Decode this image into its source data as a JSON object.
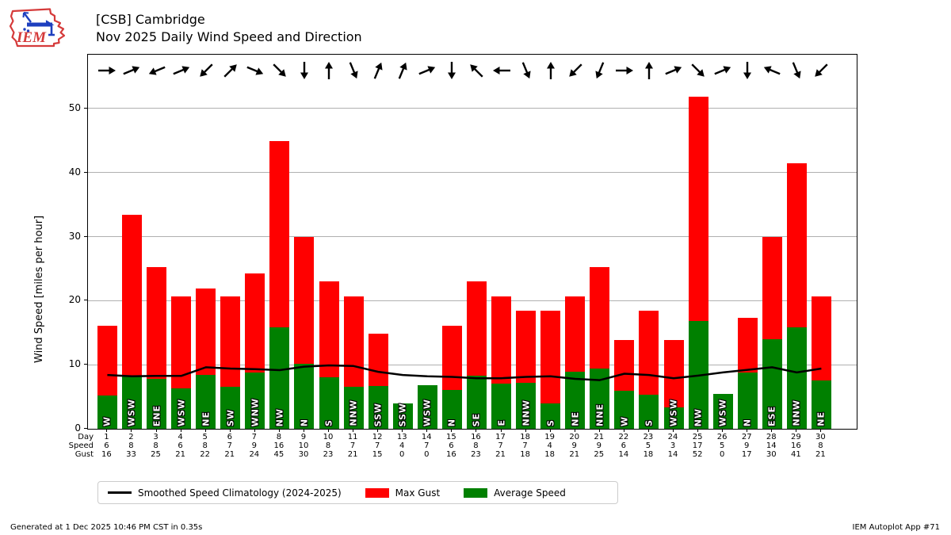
{
  "logo": {
    "text": "IEM"
  },
  "header": {
    "title_line1": "[CSB] Cambridge",
    "title_line2": "Nov 2025 Daily Wind Speed and Direction"
  },
  "chart_data": {
    "type": "bar",
    "title": "Nov 2025 Daily Wind Speed and Direction",
    "station": "[CSB] Cambridge",
    "xlabel": "",
    "ylabel": "Wind Speed [miles per hour]",
    "ylim": [
      0,
      58.4
    ],
    "yticks": [
      0,
      10,
      20,
      30,
      40,
      50
    ],
    "grid": "horizontal",
    "legend_position": "bottom",
    "colors": {
      "max_gust": "#ff0000",
      "average_speed": "#008000",
      "climatology_line": "#000000",
      "gridline": "#b0b0b0"
    },
    "row_labels": [
      "Day",
      "Speed",
      "Gust"
    ],
    "days": [
      {
        "day": 1,
        "dir": "W",
        "speed": 6,
        "gust": 16,
        "avg_mph": 5.2,
        "gust_mph": 16.1
      },
      {
        "day": 2,
        "dir": "WSW",
        "speed": 8,
        "gust": 33,
        "avg_mph": 8.2,
        "gust_mph": 33.4
      },
      {
        "day": 3,
        "dir": "ENE",
        "speed": 8,
        "gust": 25,
        "avg_mph": 7.8,
        "gust_mph": 25.3
      },
      {
        "day": 4,
        "dir": "WSW",
        "speed": 6,
        "gust": 21,
        "avg_mph": 6.3,
        "gust_mph": 20.7
      },
      {
        "day": 5,
        "dir": "NE",
        "speed": 8,
        "gust": 22,
        "avg_mph": 8.4,
        "gust_mph": 21.9
      },
      {
        "day": 6,
        "dir": "SW",
        "speed": 7,
        "gust": 21,
        "avg_mph": 6.6,
        "gust_mph": 20.7
      },
      {
        "day": 7,
        "dir": "WNW",
        "speed": 9,
        "gust": 24,
        "avg_mph": 8.8,
        "gust_mph": 24.2
      },
      {
        "day": 8,
        "dir": "NW",
        "speed": 16,
        "gust": 45,
        "avg_mph": 15.8,
        "gust_mph": 44.9
      },
      {
        "day": 9,
        "dir": "N",
        "speed": 10,
        "gust": 30,
        "avg_mph": 10.2,
        "gust_mph": 29.9
      },
      {
        "day": 10,
        "dir": "S",
        "speed": 8,
        "gust": 23,
        "avg_mph": 8.0,
        "gust_mph": 23.0
      },
      {
        "day": 11,
        "dir": "NNW",
        "speed": 7,
        "gust": 21,
        "avg_mph": 6.6,
        "gust_mph": 20.7
      },
      {
        "day": 12,
        "dir": "SSW",
        "speed": 7,
        "gust": 15,
        "avg_mph": 6.7,
        "gust_mph": 14.9
      },
      {
        "day": 13,
        "dir": "SSW",
        "speed": 4,
        "gust": 0,
        "avg_mph": 3.9,
        "gust_mph": 0
      },
      {
        "day": 14,
        "dir": "WSW",
        "speed": 7,
        "gust": 0,
        "avg_mph": 6.8,
        "gust_mph": 0
      },
      {
        "day": 15,
        "dir": "N",
        "speed": 6,
        "gust": 16,
        "avg_mph": 6.1,
        "gust_mph": 16.1
      },
      {
        "day": 16,
        "dir": "SE",
        "speed": 8,
        "gust": 23,
        "avg_mph": 8.3,
        "gust_mph": 23.0
      },
      {
        "day": 17,
        "dir": "E",
        "speed": 7,
        "gust": 21,
        "avg_mph": 7.0,
        "gust_mph": 20.7
      },
      {
        "day": 18,
        "dir": "NNW",
        "speed": 7,
        "gust": 18,
        "avg_mph": 7.2,
        "gust_mph": 18.4
      },
      {
        "day": 19,
        "dir": "S",
        "speed": 4,
        "gust": 18,
        "avg_mph": 3.9,
        "gust_mph": 18.4
      },
      {
        "day": 20,
        "dir": "NE",
        "speed": 9,
        "gust": 21,
        "avg_mph": 8.9,
        "gust_mph": 20.7
      },
      {
        "day": 21,
        "dir": "NNE",
        "speed": 9,
        "gust": 25,
        "avg_mph": 9.4,
        "gust_mph": 25.3
      },
      {
        "day": 22,
        "dir": "W",
        "speed": 6,
        "gust": 14,
        "avg_mph": 5.9,
        "gust_mph": 13.8
      },
      {
        "day": 23,
        "dir": "S",
        "speed": 5,
        "gust": 18,
        "avg_mph": 5.3,
        "gust_mph": 18.4
      },
      {
        "day": 24,
        "dir": "WSW",
        "speed": 3,
        "gust": 14,
        "avg_mph": 3.4,
        "gust_mph": 13.8
      },
      {
        "day": 25,
        "dir": "NW",
        "speed": 17,
        "gust": 52,
        "avg_mph": 16.8,
        "gust_mph": 51.8
      },
      {
        "day": 26,
        "dir": "WSW",
        "speed": 5,
        "gust": 0,
        "avg_mph": 5.5,
        "gust_mph": 0
      },
      {
        "day": 27,
        "dir": "N",
        "speed": 9,
        "gust": 17,
        "avg_mph": 8.8,
        "gust_mph": 17.3
      },
      {
        "day": 28,
        "dir": "ESE",
        "speed": 14,
        "gust": 30,
        "avg_mph": 14.0,
        "gust_mph": 30.0
      },
      {
        "day": 29,
        "dir": "NNW",
        "speed": 16,
        "gust": 41,
        "avg_mph": 15.8,
        "gust_mph": 41.4
      },
      {
        "day": 30,
        "dir": "NE",
        "speed": 8,
        "gust": 21,
        "avg_mph": 7.6,
        "gust_mph": 20.7
      }
    ],
    "series": [
      {
        "name": "Max Gust",
        "type": "bar",
        "color": "#ff0000"
      },
      {
        "name": "Average Speed",
        "type": "bar",
        "color": "#008000"
      },
      {
        "name": "Smoothed Speed Climatology (2024-2025)",
        "type": "line",
        "color": "#000000",
        "values": [
          8.4,
          8.2,
          8.25,
          8.25,
          9.6,
          9.4,
          9.3,
          9.15,
          9.7,
          9.9,
          9.8,
          8.9,
          8.4,
          8.2,
          8.1,
          7.9,
          7.9,
          8.1,
          8.2,
          7.8,
          7.6,
          8.6,
          8.4,
          7.9,
          8.3,
          8.8,
          9.2,
          9.6,
          8.8,
          9.4
        ]
      }
    ]
  },
  "legend": {
    "items": [
      {
        "swatch": "line",
        "color": "#000000",
        "label": "Smoothed Speed Climatology (2024-2025)"
      },
      {
        "swatch": "rect",
        "color": "#ff0000",
        "label": "Max Gust"
      },
      {
        "swatch": "rect",
        "color": "#008000",
        "label": "Average Speed"
      }
    ]
  },
  "footer": {
    "generated": "Generated at 1 Dec 2025 10:46 PM CST in 0.35s",
    "app": "IEM Autoplot App #71"
  }
}
